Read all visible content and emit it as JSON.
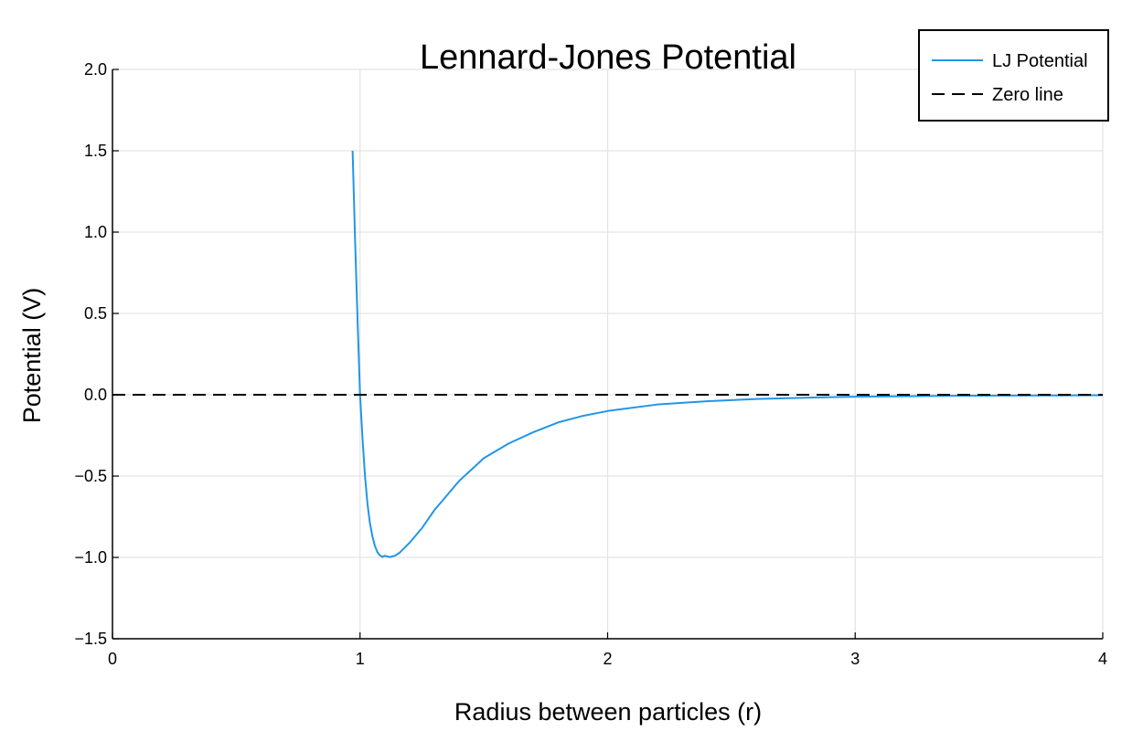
{
  "chart_data": {
    "type": "line",
    "title": "Lennard-Jones Potential",
    "xlabel": "Radius between particles (r)",
    "ylabel": "Potential (V)",
    "xlim": [
      0,
      4
    ],
    "ylim": [
      -1.5,
      2.0
    ],
    "grid": true,
    "legend_position": "top-right",
    "x_ticks": [
      0,
      1,
      2,
      3,
      4
    ],
    "x_tick_labels": [
      "0",
      "1",
      "2",
      "3",
      "4"
    ],
    "y_ticks": [
      -1.5,
      -1.0,
      -0.5,
      0.0,
      0.5,
      1.0,
      1.5,
      2.0
    ],
    "y_tick_labels": [
      "−1.5",
      "−1.0",
      "−0.5",
      "0.0",
      "0.5",
      "1.0",
      "1.5",
      "2.0"
    ],
    "series": [
      {
        "name": "LJ Potential",
        "color": "#2196e8",
        "style": "solid",
        "x": [
          0.97,
          0.98,
          0.99,
          1.0,
          1.01,
          1.02,
          1.03,
          1.04,
          1.05,
          1.06,
          1.07,
          1.08,
          1.09,
          1.1,
          1.12,
          1.14,
          1.16,
          1.2,
          1.25,
          1.3,
          1.35,
          1.4,
          1.45,
          1.5,
          1.6,
          1.7,
          1.8,
          1.9,
          2.0,
          2.2,
          2.4,
          2.6,
          2.8,
          3.0,
          3.2,
          3.4,
          3.6,
          3.8,
          4.0
        ],
        "y": [
          1.5,
          0.95,
          0.46,
          0.0,
          -0.27,
          -0.5,
          -0.67,
          -0.79,
          -0.87,
          -0.93,
          -0.967,
          -0.987,
          -0.997,
          -0.99,
          -0.998,
          -0.99,
          -0.971,
          -0.91,
          -0.82,
          -0.71,
          -0.62,
          -0.53,
          -0.46,
          -0.39,
          -0.3,
          -0.23,
          -0.17,
          -0.13,
          -0.1,
          -0.06,
          -0.04,
          -0.026,
          -0.018,
          -0.012,
          -0.009,
          -0.006,
          -0.005,
          -0.004,
          -0.003
        ]
      },
      {
        "name": "Zero line",
        "color": "#000000",
        "style": "dashed",
        "x": [
          0,
          4
        ],
        "y": [
          0,
          0
        ]
      }
    ]
  }
}
